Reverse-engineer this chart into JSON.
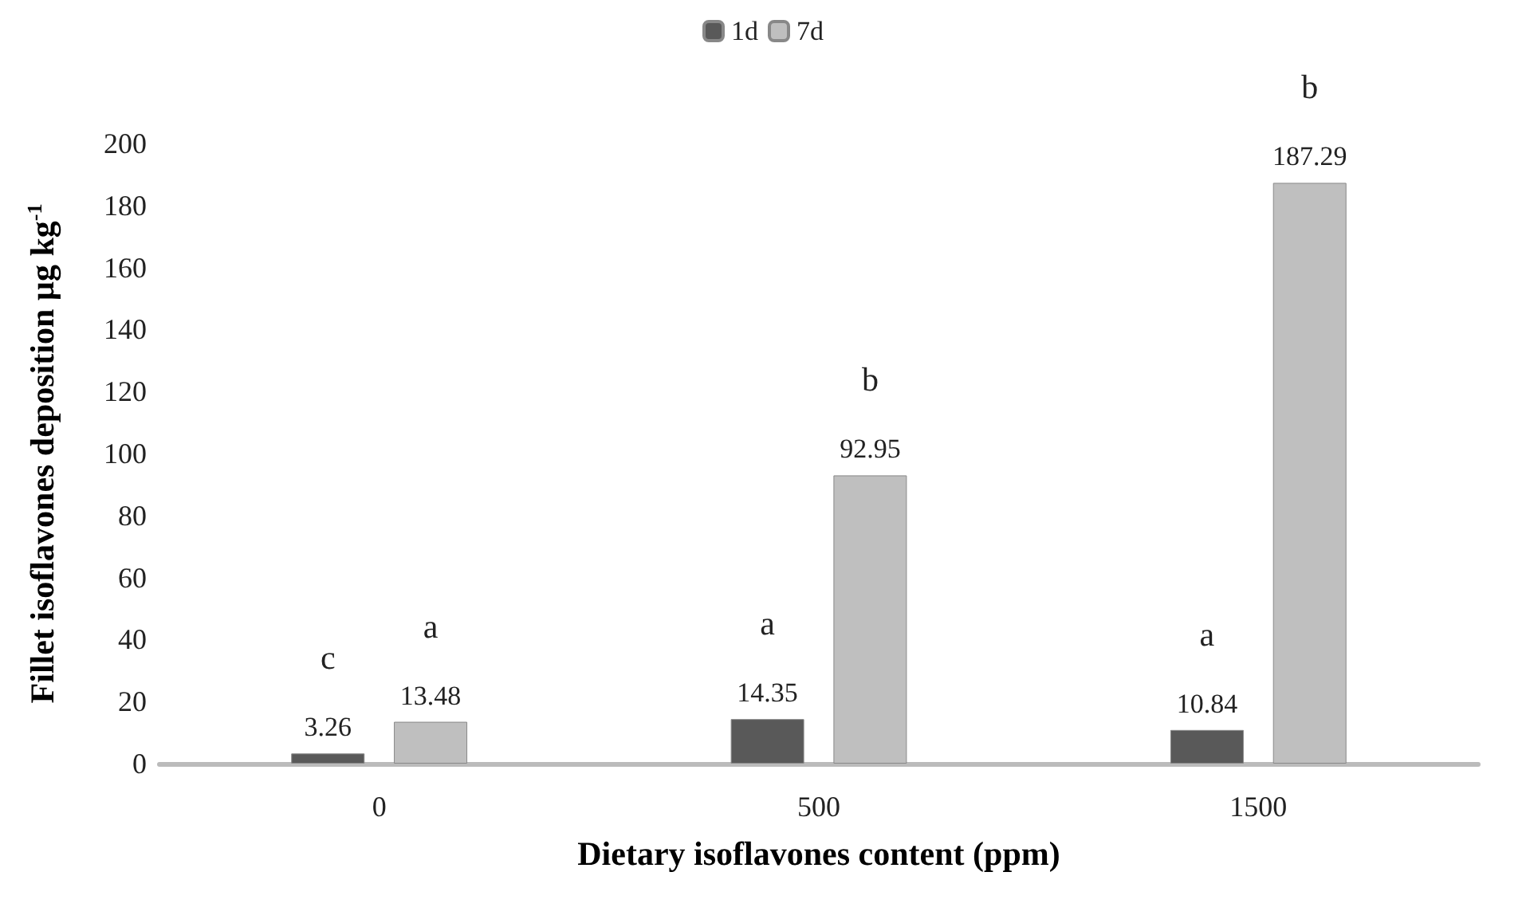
{
  "chart_data": {
    "type": "bar",
    "xlabel": "Dietary isoflavones content (ppm)",
    "ylabel": "Fillet isoflavones deposition µg kg$^{-1}$",
    "categories": [
      "0",
      "500",
      "1500"
    ],
    "series": [
      {
        "name": "1d",
        "color": "#595959",
        "values": [
          3.26,
          14.35,
          10.84
        ]
      },
      {
        "name": "7d",
        "color": "#bfbfbf",
        "values": [
          13.48,
          92.95,
          187.29
        ]
      }
    ],
    "ylim": [
      0,
      200
    ],
    "yticks": [
      0,
      20,
      40,
      60,
      80,
      100,
      120,
      140,
      160,
      180,
      200
    ],
    "data_labels": true,
    "legend": "top",
    "grid": false,
    "annotations": [
      "c",
      "a",
      "a",
      "b",
      "a",
      "b"
    ]
  }
}
